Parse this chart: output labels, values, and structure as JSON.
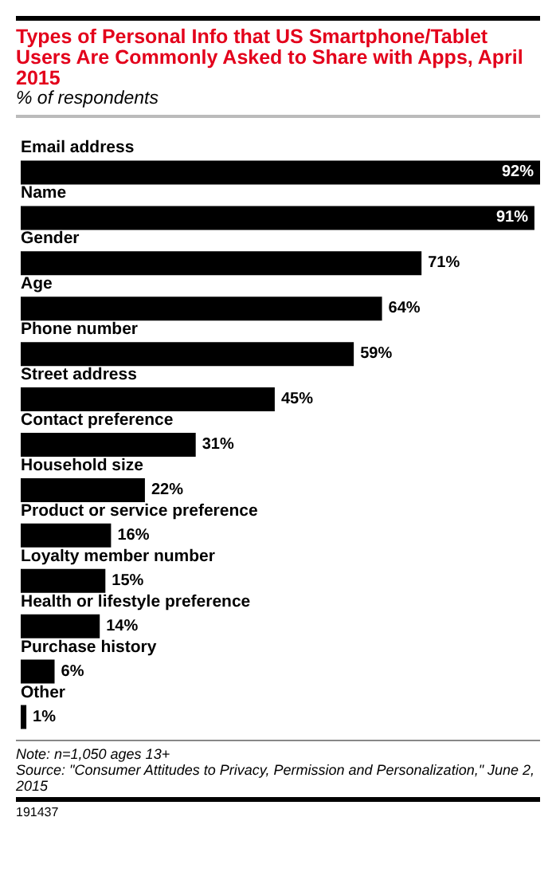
{
  "chart_data": {
    "type": "bar",
    "orientation": "horizontal",
    "title": "Types of Personal Info that US Smartphone/Tablet Users Are Commonly Asked to Share with Apps, April 2015",
    "subtitle": "% of respondents",
    "categories": [
      "Email address",
      "Name",
      "Gender",
      "Age",
      "Phone number",
      "Street address",
      "Contact preference",
      "Household size",
      "Product or service preference",
      "Loyalty member number",
      "Health or lifestyle preference",
      "Purchase history",
      "Other"
    ],
    "values": [
      92,
      91,
      71,
      64,
      59,
      45,
      31,
      22,
      16,
      15,
      14,
      6,
      1
    ],
    "value_labels": [
      "92%",
      "91%",
      "71%",
      "64%",
      "59%",
      "45%",
      "31%",
      "22%",
      "16%",
      "15%",
      "14%",
      "6%",
      "1%"
    ],
    "color": "#000000",
    "annotations": [
      "Note: n=1,050 ages 13+",
      "Source: \"Consumer Attitudes to Privacy, Permission and Personalization,\" June 2, 2015",
      "191437"
    ]
  }
}
